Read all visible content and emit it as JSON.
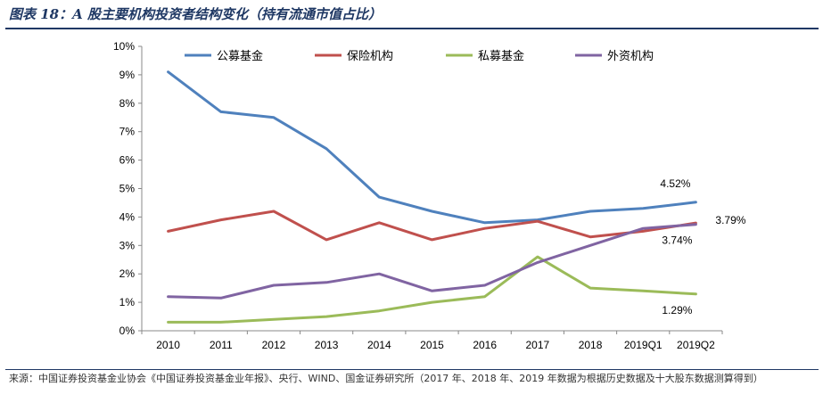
{
  "header": {
    "title": "图表 18：A 股主要机构投资者结构变化（持有流通市值占比）"
  },
  "footer": {
    "source": "来源：中国证券投资基金业协会《中国证券投资基金业年报》、央行、WIND、国金证券研究所（2017 年、2018 年、2019 年数据为根据历史数据及十大股东数据测算得到）"
  },
  "chart_data": {
    "type": "line",
    "categories": [
      "2010",
      "2011",
      "2012",
      "2013",
      "2014",
      "2015",
      "2016",
      "2017",
      "2018",
      "2019Q1",
      "2019Q2"
    ],
    "y_ticks": [
      "0%",
      "1%",
      "2%",
      "3%",
      "4%",
      "5%",
      "6%",
      "7%",
      "8%",
      "9%",
      "10%"
    ],
    "ylim": [
      0,
      10
    ],
    "legend_position": "top",
    "grid": false,
    "series": [
      {
        "name": "公募基金",
        "color": "#4f81bd",
        "values": [
          9.1,
          7.7,
          7.5,
          6.4,
          4.7,
          4.2,
          3.8,
          3.9,
          4.2,
          4.3,
          4.52
        ]
      },
      {
        "name": "保险机构",
        "color": "#c0504d",
        "values": [
          3.5,
          3.9,
          4.2,
          3.2,
          3.8,
          3.2,
          3.6,
          3.85,
          3.3,
          3.5,
          3.79
        ]
      },
      {
        "name": "私募基金",
        "color": "#9bbb59",
        "values": [
          0.3,
          0.3,
          0.4,
          0.5,
          0.7,
          1.0,
          1.2,
          2.6,
          1.5,
          1.4,
          1.29
        ]
      },
      {
        "name": "外资机构",
        "color": "#8064a2",
        "values": [
          1.2,
          1.15,
          1.6,
          1.7,
          2.0,
          1.4,
          1.6,
          2.4,
          3.0,
          3.6,
          3.74
        ]
      }
    ],
    "annotations": [
      {
        "text": "4.52%",
        "series": 0
      },
      {
        "text": "3.79%",
        "series": 1
      },
      {
        "text": "3.74%",
        "series": 3
      },
      {
        "text": "1.29%",
        "series": 2
      }
    ]
  }
}
